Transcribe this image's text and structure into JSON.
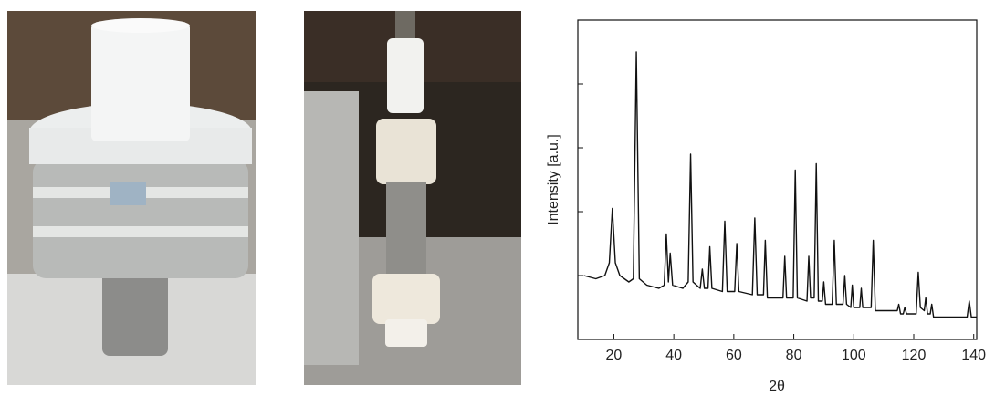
{
  "chart_data": {
    "type": "line",
    "xlabel": "2θ",
    "ylabel": "Intensity [a.u.]",
    "x": [
      10,
      14,
      17,
      18.5,
      19.5,
      20.5,
      22,
      25,
      26.5,
      27.5,
      28.5,
      31,
      35,
      36.8,
      37.5,
      38.2,
      38.8,
      39.6,
      43,
      44.8,
      45.6,
      46.4,
      48.8,
      49.5,
      50.2,
      51.4,
      52,
      52.7,
      56.2,
      57,
      57.8,
      60.3,
      61,
      61.7,
      66.2,
      67,
      67.8,
      69.9,
      70.5,
      71.2,
      76.4,
      77,
      77.6,
      79.8,
      80.5,
      81.2,
      84.4,
      85,
      85.6,
      86.8,
      87.5,
      88.2,
      89.5,
      90,
      90.6,
      92.8,
      93.5,
      94.2,
      96.4,
      97,
      97.6,
      99,
      99.5,
      100,
      102,
      102.5,
      103,
      105.8,
      106.5,
      107.2,
      114.5,
      115,
      115.6,
      116.5,
      117,
      117.6,
      120.8,
      121.5,
      122.2,
      123.5,
      124,
      124.6,
      125.5,
      126,
      126.6,
      137.8,
      138.5,
      139.2,
      141
    ],
    "series": [
      {
        "color": "#111111",
        "values": [
          20,
          19,
          20,
          24,
          41,
          24,
          20,
          18,
          19,
          90,
          19,
          17,
          16,
          17,
          33,
          18,
          27,
          17,
          16,
          18,
          58,
          18,
          16,
          22,
          16,
          16,
          29,
          16,
          15,
          37,
          15,
          15,
          30,
          15,
          14,
          38,
          14,
          14,
          31,
          13,
          13,
          26,
          13,
          13,
          53,
          13,
          12,
          26,
          13,
          13,
          55,
          12,
          12,
          18,
          11,
          11,
          31,
          11,
          11,
          20,
          11,
          10,
          17,
          10,
          10,
          16,
          10,
          10,
          31,
          9,
          9,
          11,
          8,
          8,
          10,
          8,
          8,
          21,
          10,
          9,
          13,
          8,
          8,
          11,
          7,
          7,
          12,
          7,
          7
        ]
      }
    ],
    "xlim": [
      8,
      141
    ],
    "xticks": [
      20,
      40,
      60,
      80,
      100,
      120,
      140
    ],
    "ylim": [
      0,
      100
    ],
    "yticks": [
      20,
      40,
      60,
      80
    ]
  }
}
